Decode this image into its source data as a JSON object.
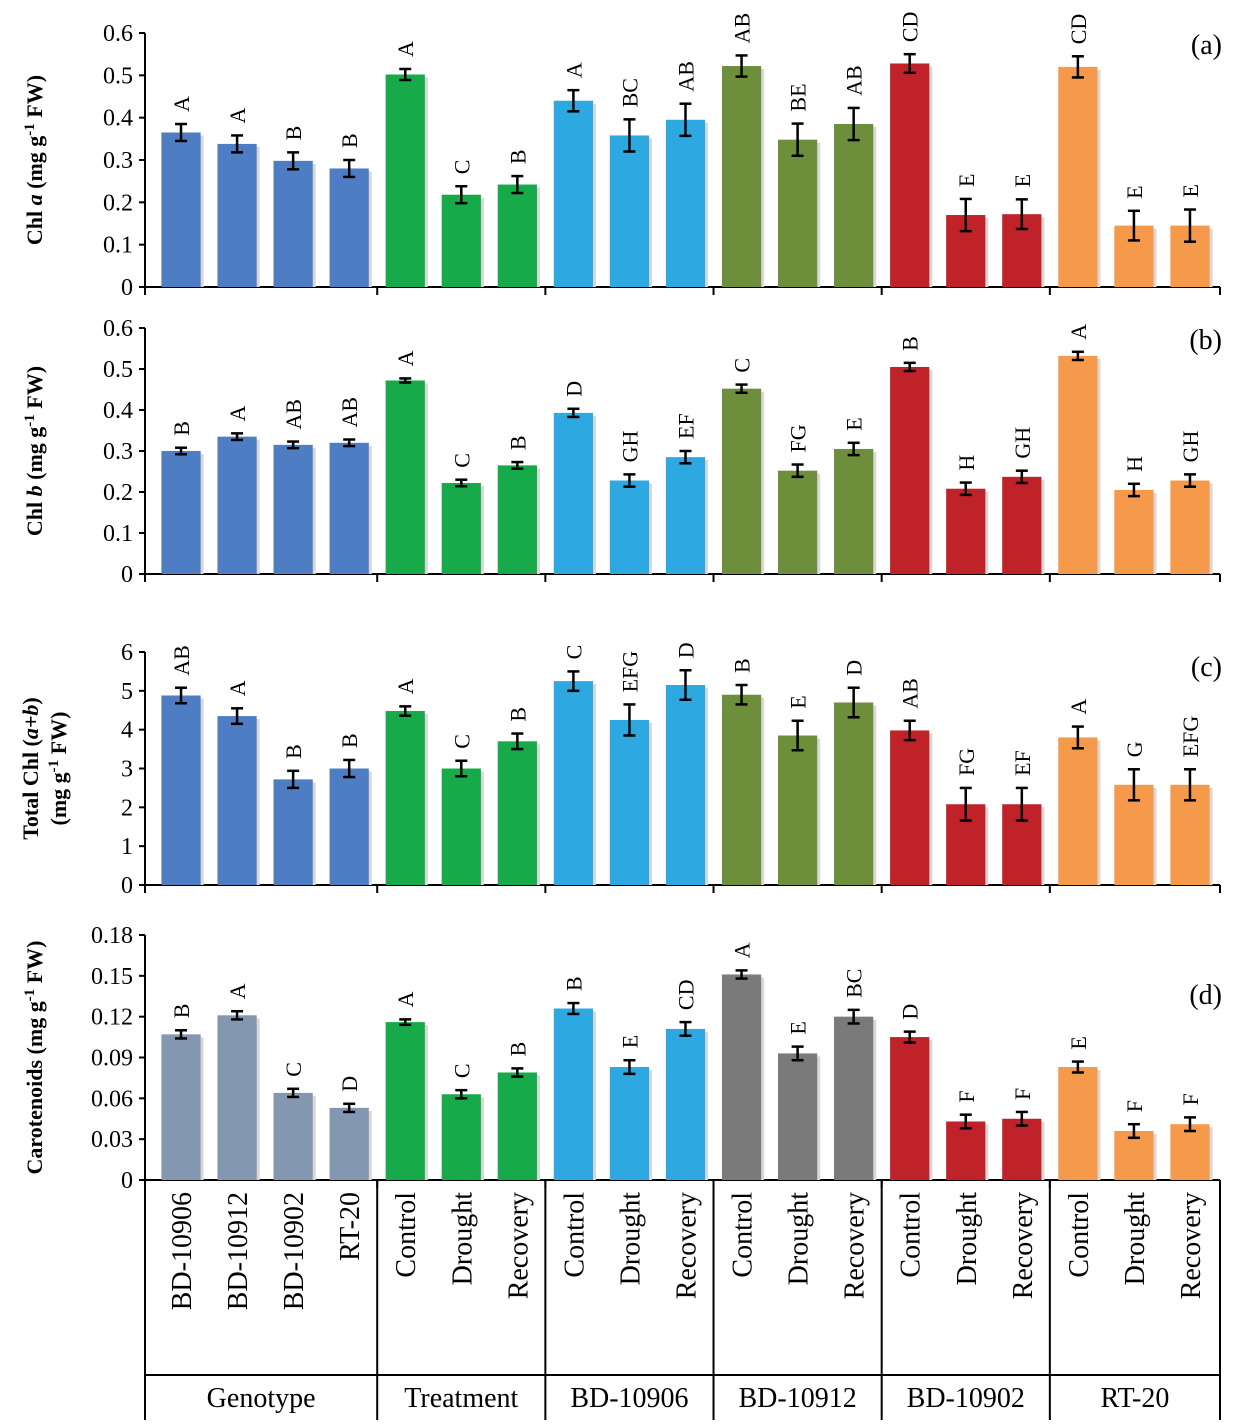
{
  "categories": [
    "BD-10906",
    "BD-10912",
    "BD-10902",
    "RT-20",
    "Control",
    "Drought",
    "Recovery",
    "Control",
    "Drought",
    "Recovery",
    "Control",
    "Drought",
    "Recovery",
    "Control",
    "Drought",
    "Recovery",
    "Control",
    "Drought",
    "Recovery"
  ],
  "groups": [
    {
      "label": "Genotype",
      "start": 0,
      "end": 3
    },
    {
      "label": "Treatment",
      "start": 4,
      "end": 6
    },
    {
      "label": "BD-10906",
      "start": 7,
      "end": 9
    },
    {
      "label": "BD-10912",
      "start": 10,
      "end": 12
    },
    {
      "label": "BD-10902",
      "start": 13,
      "end": 15
    },
    {
      "label": "RT-20",
      "start": 16,
      "end": 18
    }
  ],
  "colors": {
    "genotype_blue": "#4F7DC3",
    "genotype_gray": "#8497B0",
    "treatment_green": "#17AA4A",
    "bd10906_blue": "#2EA8E0",
    "bd10912_olive": "#6D8E3B",
    "bd10912_gray": "#7A7A7A",
    "bd10902_red": "#C0222A",
    "rt20_orange": "#F59A4A"
  },
  "chart_data": [
    {
      "type": "bar",
      "panel": "(a)",
      "ylabel": {
        "prefix": "Chl ",
        "italic": "a",
        "unit_pre": " (mg g",
        "sup": "-1",
        "unit_post": " FW)"
      },
      "ylim": [
        0,
        0.6
      ],
      "yticks": [
        "0",
        "0.1",
        "0.2",
        "0.3",
        "0.4",
        "0.5",
        "0.6"
      ],
      "values": [
        0.365,
        0.338,
        0.298,
        0.28,
        0.502,
        0.218,
        0.242,
        0.44,
        0.358,
        0.395,
        0.522,
        0.348,
        0.385,
        0.528,
        0.17,
        0.172,
        0.52,
        0.145,
        0.145
      ],
      "errors": [
        0.02,
        0.02,
        0.02,
        0.02,
        0.013,
        0.02,
        0.02,
        0.025,
        0.038,
        0.038,
        0.025,
        0.038,
        0.038,
        0.022,
        0.038,
        0.035,
        0.025,
        0.035,
        0.038
      ],
      "letters": [
        "A",
        "A",
        "B",
        "B",
        "A",
        "C",
        "B",
        "A",
        "BC",
        "AB",
        "AB",
        "BE",
        "AB",
        "CD",
        "E",
        "E",
        "CD",
        "E",
        "E"
      ],
      "colors": [
        "genotype_blue",
        "genotype_blue",
        "genotype_blue",
        "genotype_blue",
        "treatment_green",
        "treatment_green",
        "treatment_green",
        "bd10906_blue",
        "bd10906_blue",
        "bd10906_blue",
        "bd10912_olive",
        "bd10912_olive",
        "bd10912_olive",
        "bd10902_red",
        "bd10902_red",
        "bd10902_red",
        "rt20_orange",
        "rt20_orange",
        "rt20_orange"
      ]
    },
    {
      "type": "bar",
      "panel": "(b)",
      "ylabel": {
        "prefix": "Chl ",
        "italic": "b",
        "unit_pre": " (mg g",
        "sup": "-1",
        "unit_post": " FW)"
      },
      "ylim": [
        0,
        0.6
      ],
      "yticks": [
        "0",
        "0.1",
        "0.2",
        "0.3",
        "0.4",
        "0.5",
        "0.6"
      ],
      "values": [
        0.3,
        0.335,
        0.315,
        0.32,
        0.472,
        0.222,
        0.265,
        0.393,
        0.228,
        0.285,
        0.452,
        0.252,
        0.305,
        0.505,
        0.208,
        0.237,
        0.532,
        0.205,
        0.228
      ],
      "errors": [
        0.008,
        0.008,
        0.008,
        0.008,
        0.005,
        0.008,
        0.008,
        0.01,
        0.015,
        0.015,
        0.01,
        0.015,
        0.015,
        0.01,
        0.015,
        0.015,
        0.01,
        0.015,
        0.015
      ],
      "letters": [
        "B",
        "A",
        "AB",
        "AB",
        "A",
        "C",
        "B",
        "D",
        "GH",
        "EF",
        "C",
        "FG",
        "E",
        "B",
        "H",
        "GH",
        "A",
        "H",
        "GH"
      ],
      "colors": [
        "genotype_blue",
        "genotype_blue",
        "genotype_blue",
        "genotype_blue",
        "treatment_green",
        "treatment_green",
        "treatment_green",
        "bd10906_blue",
        "bd10906_blue",
        "bd10906_blue",
        "bd10912_olive",
        "bd10912_olive",
        "bd10912_olive",
        "bd10902_red",
        "bd10902_red",
        "bd10902_red",
        "rt20_orange",
        "rt20_orange",
        "rt20_orange"
      ]
    },
    {
      "type": "bar",
      "panel": "(c)",
      "ylabel": {
        "line1_prefix": "Total Chl (",
        "line1_italic": "a+b",
        "line1_suffix": ")",
        "line2_pre": "(mg g",
        "sup": "-1",
        "line2_post": " FW)"
      },
      "ylim": [
        0,
        6
      ],
      "yticks": [
        "0",
        "1",
        "2",
        "3",
        "4",
        "5",
        "6"
      ],
      "values": [
        4.88,
        4.35,
        2.72,
        3.0,
        4.48,
        3.0,
        3.7,
        5.25,
        4.25,
        5.15,
        4.9,
        3.85,
        4.7,
        3.98,
        2.08,
        2.08,
        3.8,
        2.58,
        2.58
      ],
      "errors": [
        0.2,
        0.2,
        0.22,
        0.22,
        0.12,
        0.2,
        0.2,
        0.25,
        0.4,
        0.38,
        0.25,
        0.38,
        0.38,
        0.25,
        0.42,
        0.42,
        0.28,
        0.4,
        0.4
      ],
      "letters": [
        "AB",
        "A",
        "B",
        "B",
        "A",
        "C",
        "B",
        "C",
        "EFG",
        "D",
        "B",
        "E",
        "D",
        "AB",
        "FG",
        "EF",
        "A",
        "G",
        "EFG"
      ],
      "colors": [
        "genotype_blue",
        "genotype_blue",
        "genotype_blue",
        "genotype_blue",
        "treatment_green",
        "treatment_green",
        "treatment_green",
        "bd10906_blue",
        "bd10906_blue",
        "bd10906_blue",
        "bd10912_olive",
        "bd10912_olive",
        "bd10912_olive",
        "bd10902_red",
        "bd10902_red",
        "bd10902_red",
        "rt20_orange",
        "rt20_orange",
        "rt20_orange"
      ]
    },
    {
      "type": "bar",
      "panel": "(d)",
      "ylabel": {
        "prefix": "Carotenoids (mg g",
        "sup": "-1",
        "unit_post": " FW)"
      },
      "ylim": [
        0,
        0.18
      ],
      "yticks": [
        "0",
        "0.03",
        "0.06",
        "0.09",
        "0.12",
        "0.15",
        "0.18"
      ],
      "values": [
        0.107,
        0.121,
        0.064,
        0.053,
        0.116,
        0.063,
        0.079,
        0.126,
        0.083,
        0.111,
        0.151,
        0.093,
        0.12,
        0.105,
        0.043,
        0.045,
        0.083,
        0.036,
        0.041
      ],
      "errors": [
        0.003,
        0.003,
        0.003,
        0.003,
        0.002,
        0.003,
        0.003,
        0.004,
        0.005,
        0.005,
        0.003,
        0.005,
        0.005,
        0.004,
        0.005,
        0.005,
        0.004,
        0.005,
        0.005
      ],
      "letters": [
        "B",
        "A",
        "C",
        "D",
        "A",
        "C",
        "B",
        "B",
        "E",
        "CD",
        "A",
        "E",
        "BC",
        "D",
        "F",
        "F",
        "E",
        "F",
        "F"
      ],
      "colors": [
        "genotype_gray",
        "genotype_gray",
        "genotype_gray",
        "genotype_gray",
        "treatment_green",
        "treatment_green",
        "treatment_green",
        "bd10906_blue",
        "bd10906_blue",
        "bd10906_blue",
        "bd10912_gray",
        "bd10912_gray",
        "bd10912_gray",
        "bd10902_red",
        "bd10902_red",
        "bd10902_red",
        "rt20_orange",
        "rt20_orange",
        "rt20_orange"
      ]
    }
  ]
}
